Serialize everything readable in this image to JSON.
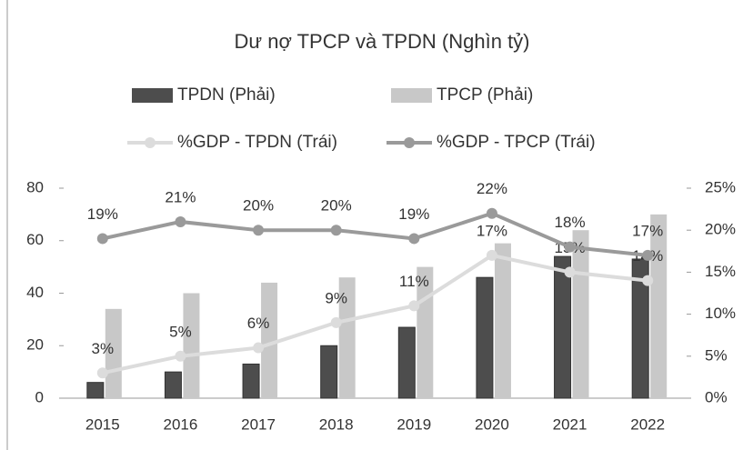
{
  "chart_data": {
    "type": "bar",
    "title": "Dư nợ TPCP và TPDN (Nghìn tỷ)",
    "categories": [
      "2015",
      "2016",
      "2017",
      "2018",
      "2019",
      "2020",
      "2021",
      "2022"
    ],
    "series": [
      {
        "name": "TPDN (Phải)",
        "type": "bar",
        "color": "#4d4d4d",
        "values": [
          6,
          10,
          13,
          20,
          27,
          46,
          54,
          53
        ]
      },
      {
        "name": "TPCP (Phải)",
        "type": "bar",
        "color": "#c8c8c8",
        "values": [
          34,
          40,
          44,
          46,
          50,
          59,
          64,
          70
        ]
      },
      {
        "name": "%GDP - TPDN (Trái)",
        "type": "line",
        "axis": "y2",
        "color": "#dcdcdc",
        "values": [
          3,
          5,
          6,
          9,
          11,
          17,
          15,
          14
        ],
        "value_labels": [
          "3%",
          "5%",
          "6%",
          "9%",
          "11%",
          "17%",
          "15%",
          "14%"
        ]
      },
      {
        "name": "%GDP - TPCP (Trái)",
        "type": "line",
        "axis": "y2",
        "color": "#9a9a9a",
        "values": [
          19,
          21,
          20,
          20,
          19,
          22,
          18,
          17
        ],
        "value_labels": [
          "19%",
          "21%",
          "20%",
          "20%",
          "19%",
          "22%",
          "18%",
          "17%"
        ]
      }
    ],
    "ylim": [
      0,
      80
    ],
    "yticks": [
      0,
      20,
      40,
      60,
      80
    ],
    "y2lim": [
      0,
      25
    ],
    "y2ticks": [
      {
        "value": 0,
        "label": "0%"
      },
      {
        "value": 5,
        "label": "5%"
      },
      {
        "value": 10,
        "label": "10%"
      },
      {
        "value": 15,
        "label": "15%"
      },
      {
        "value": 20,
        "label": "20%"
      },
      {
        "value": 25,
        "label": "25%"
      }
    ]
  }
}
